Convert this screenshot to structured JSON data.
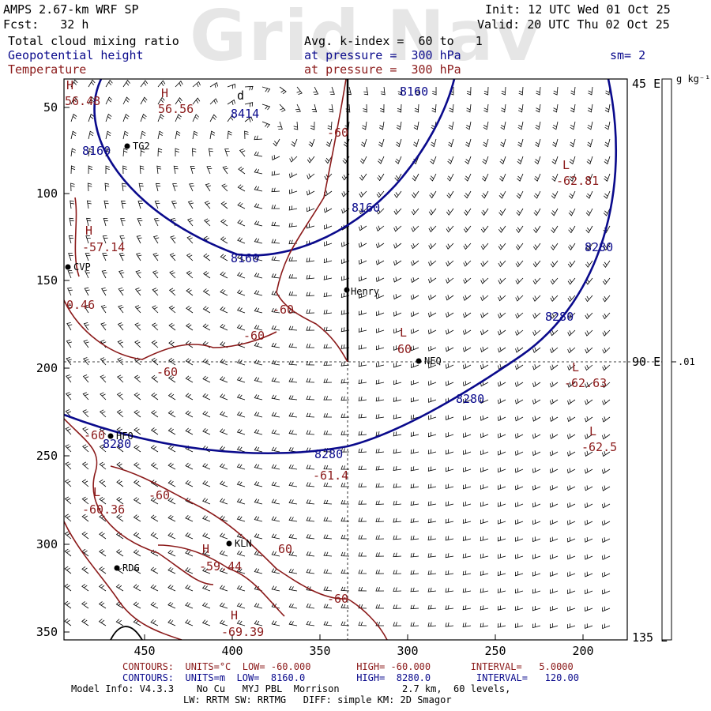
{
  "watermark": "Grid Nav",
  "header": {
    "line1_left": "AMPS 2.67-km WRF SP",
    "line2_left": "Fcst:   32 h",
    "init": "Init: 12 UTC Wed 01 Oct 25",
    "valid": "Valid: 20 UTC Thu 02 Oct 25",
    "field1": "Total cloud mixing ratio",
    "field2": "Geopotential height",
    "field3": "Temperature",
    "avg": "Avg. k-index =  60 to   1",
    "pressure1": "at pressure =  300 hPa",
    "pressure2": "at pressure =  300 hPa",
    "sm": "sm= 2"
  },
  "colorbar": {
    "unit": "g kg⁻¹",
    "value": ".01"
  },
  "y_ticks": [
    "50",
    "100",
    "150",
    "200",
    "250",
    "300",
    "350"
  ],
  "x_ticks": [
    "450",
    "400",
    "350",
    "300",
    "250",
    "200"
  ],
  "right_labels": [
    "45 E",
    "90 E",
    "135 E"
  ],
  "height_labels": [
    "8160",
    "8414",
    "8160",
    "8160",
    "8160",
    "8280",
    "8280",
    "8280",
    "8280",
    "8280"
  ],
  "temp_labels": {
    "h1": "H",
    "h1v": "56.48",
    "h2": "H",
    "h2v": "56.56",
    "h3": "H",
    "h3v": "-57.14",
    "l1": "L",
    "l1v": "-62.81",
    "l2": "L",
    "l2v": "-62.63",
    "l3": "L",
    "l3v": "-62.5",
    "l4": "L",
    "l4v": "-60.36",
    "h4": "H",
    "h4v": "-59.44",
    "h5": "H",
    "h5v": "-69.39",
    "c_a": "-60",
    "c_b": "-60",
    "c_c": "-60",
    "c_d": "-60",
    "c_e": "60",
    "c_f": "-60",
    "c_g": "-61.4",
    "c_h": "-60",
    "c_i": "0.46",
    "c_j": "60",
    "c_k": "-60",
    "l5": "L",
    "l5v": "60"
  },
  "low_d": "d",
  "stations": [
    "TG2",
    "CVP",
    "Henry",
    "NEQ",
    "HFO",
    "KLN",
    "RDG"
  ],
  "contour_info": {
    "red": "CONTOURS:  UNITS=°C  LOW= -60.000        HIGH= -60.000       INTERVAL=   5.0000",
    "blue": "CONTOURS:  UNITS=m  LOW=  8160.0         HIGH=  8280.0        INTERVAL=   120.00"
  },
  "footer": {
    "line1": "Model Info: V4.3.3    No Cu   MYJ PBL  Morrison           2.7 km,  60 levels,",
    "line2": "LW: RRTM SW: RRTMG   DIFF: simple KM: 2D Smagor"
  },
  "colors": {
    "height": "#0a0a8c",
    "temp": "#8b1a1a",
    "text": "#000000"
  }
}
